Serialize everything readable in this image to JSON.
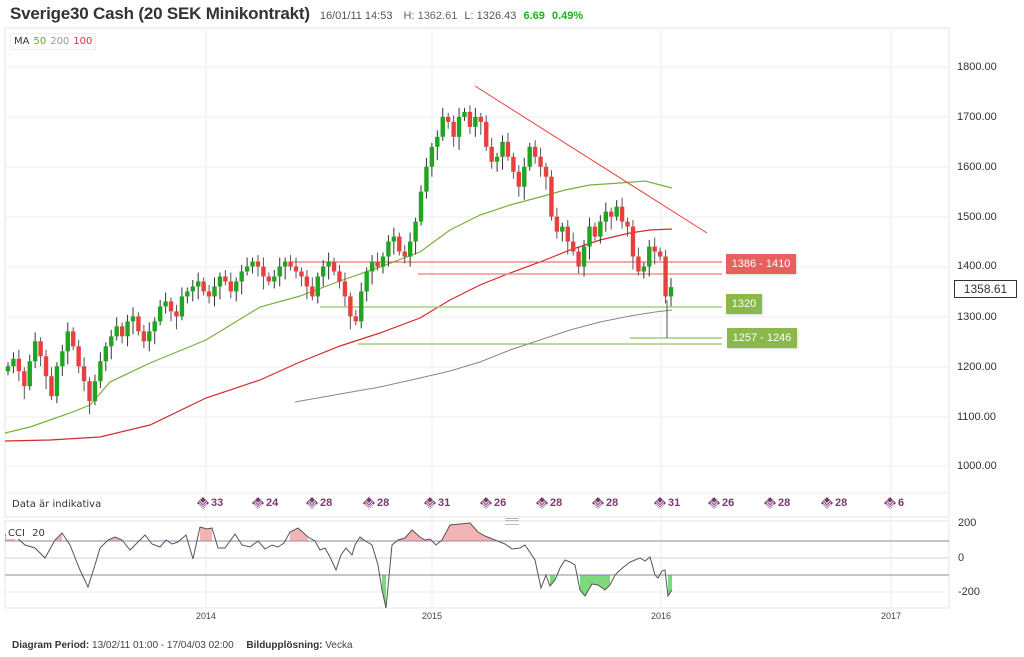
{
  "header": {
    "title": "Sverige30 Cash (20 SEK Minikontrakt)",
    "timestamp": "16/01/11 14:53",
    "high": "H: 1362.61",
    "low": "L: 1326.43",
    "change": "6.69",
    "change_pct": "0.49%"
  },
  "legend": {
    "prefix": "MA",
    "ma50": "50",
    "ma200": "200",
    "ma100": "100"
  },
  "colors": {
    "up": "#1fa51f",
    "down": "#e8403e",
    "ma50": "#7ab03a",
    "ma100": "#d62a2a",
    "ma200": "#888888",
    "resistance": "#e05050",
    "support": "#7ab03a",
    "event": "#7a3a70"
  },
  "price_axis": [
    "1800.00",
    "1700.00",
    "1600.00",
    "1500.00",
    "1400.00",
    "1300.00",
    "1200.00",
    "1100.00",
    "1000.00"
  ],
  "last_price": "1358.61",
  "levels": {
    "resistance_label": "1386 - 1410",
    "support1_label": "1320",
    "support2_label": "1257 - 1246"
  },
  "data_note": "Data är indikativa",
  "events": [
    {
      "count": "33"
    },
    {
      "count": "24"
    },
    {
      "count": "28"
    },
    {
      "count": "28"
    },
    {
      "count": "31"
    },
    {
      "count": "26"
    },
    {
      "count": "28"
    },
    {
      "count": "28"
    },
    {
      "count": "31"
    },
    {
      "count": "26"
    },
    {
      "count": "28"
    },
    {
      "count": "28"
    },
    {
      "count": "6"
    }
  ],
  "cci": {
    "label": "CCI",
    "period": "20",
    "axis": [
      "200",
      "0",
      "-200"
    ]
  },
  "x_axis": [
    "2014",
    "2015",
    "2016",
    "2017"
  ],
  "footer": {
    "period_label": "Diagram Period:",
    "period_value": "13/02/11 01:00 - 17/04/03 02:00",
    "resolution_label": "Bildupplösning:",
    "resolution_value": "Vecka"
  },
  "chart_data": {
    "type": "candlestick",
    "title": "Sverige30 Cash (20 SEK Minikontrakt)",
    "resolution": "weekly",
    "x_ticks": [
      "2014",
      "2015",
      "2016",
      "2017"
    ],
    "ylim": [
      950,
      1850
    ],
    "y_ticks": [
      1000,
      1100,
      1200,
      1300,
      1400,
      1500,
      1600,
      1700,
      1800
    ],
    "last_price": 1358.61,
    "high": 1362.61,
    "low": 1326.43,
    "change": 6.69,
    "change_pct": 0.49,
    "moving_averages": [
      {
        "name": "MA 50",
        "color": "#7ab03a",
        "start": 1065,
        "end": 1555,
        "peak": 1570
      },
      {
        "name": "MA 100",
        "color": "#d62a2a",
        "start": 1045,
        "end": 1475
      },
      {
        "name": "MA 200",
        "color": "#888888",
        "start": 1130,
        "end": 1320
      }
    ],
    "approx_closes": [
      1200,
      1215,
      1190,
      1160,
      1210,
      1250,
      1220,
      1180,
      1140,
      1200,
      1230,
      1270,
      1240,
      1200,
      1170,
      1130,
      1170,
      1210,
      1240,
      1260,
      1280,
      1260,
      1290,
      1300,
      1270,
      1250,
      1270,
      1290,
      1320,
      1330,
      1310,
      1300,
      1340,
      1350,
      1360,
      1370,
      1350,
      1340,
      1360,
      1380,
      1370,
      1350,
      1370,
      1390,
      1400,
      1410,
      1400,
      1380,
      1370,
      1380,
      1400,
      1410,
      1400,
      1390,
      1380,
      1360,
      1340,
      1380,
      1400,
      1410,
      1390,
      1370,
      1340,
      1300,
      1290,
      1350,
      1390,
      1410,
      1400,
      1420,
      1450,
      1460,
      1430,
      1420,
      1450,
      1490,
      1550,
      1600,
      1640,
      1660,
      1700,
      1690,
      1660,
      1700,
      1710,
      1680,
      1700,
      1690,
      1640,
      1610,
      1620,
      1650,
      1620,
      1590,
      1560,
      1600,
      1640,
      1620,
      1600,
      1580,
      1500,
      1470,
      1480,
      1450,
      1430,
      1400,
      1440,
      1480,
      1460,
      1490,
      1510,
      1500,
      1520,
      1490,
      1480,
      1420,
      1390,
      1400,
      1440,
      1430,
      1420,
      1340,
      1358.61
    ],
    "resistance_band": [
      1386,
      1410
    ],
    "support_levels": [
      1320,
      [
        1246,
        1257
      ]
    ],
    "trendline": {
      "from": {
        "x": "2015-03",
        "y": 1760
      },
      "to": {
        "x": "2016-03",
        "y": 1470
      }
    },
    "cci": {
      "period": 20,
      "ylim": [
        -250,
        250
      ],
      "bands": [
        100,
        0,
        -100
      ],
      "last": -185
    }
  }
}
